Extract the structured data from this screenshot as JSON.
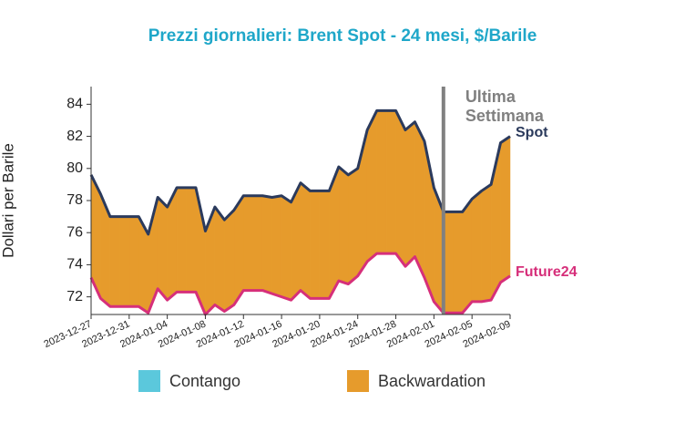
{
  "chart_data": {
    "type": "area-between",
    "title": "Prezzi giornalieri: Brent Spot - 24 mesi, $/Barile",
    "y_label": "Dollari per Barile",
    "x": [
      "2023-12-27",
      "2023-12-28",
      "2023-12-29",
      "2023-12-30",
      "2023-12-31",
      "2024-01-01",
      "2024-01-02",
      "2024-01-03",
      "2024-01-04",
      "2024-01-05",
      "2024-01-06",
      "2024-01-07",
      "2024-01-08",
      "2024-01-09",
      "2024-01-10",
      "2024-01-11",
      "2024-01-12",
      "2024-01-13",
      "2024-01-14",
      "2024-01-15",
      "2024-01-16",
      "2024-01-17",
      "2024-01-18",
      "2024-01-19",
      "2024-01-20",
      "2024-01-21",
      "2024-01-22",
      "2024-01-23",
      "2024-01-24",
      "2024-01-25",
      "2024-01-26",
      "2024-01-27",
      "2024-01-28",
      "2024-01-29",
      "2024-01-30",
      "2024-01-31",
      "2024-02-01",
      "2024-02-02",
      "2024-02-03",
      "2024-02-04",
      "2024-02-05",
      "2024-02-06",
      "2024-02-07",
      "2024-02-08",
      "2024-02-09"
    ],
    "series": [
      {
        "name": "Spot",
        "color": "#2b3a5c",
        "values": [
          79.6,
          78.4,
          77.0,
          77.0,
          77.0,
          77.0,
          75.9,
          78.2,
          77.6,
          78.8,
          78.8,
          78.8,
          76.1,
          77.6,
          76.8,
          77.4,
          78.3,
          78.3,
          78.3,
          78.2,
          78.3,
          77.9,
          79.1,
          78.6,
          78.6,
          78.6,
          80.1,
          79.6,
          80.0,
          82.4,
          83.6,
          83.6,
          83.6,
          82.4,
          82.9,
          81.7,
          78.8,
          77.3,
          77.3,
          77.3,
          78.1,
          78.6,
          79.0,
          81.6,
          82.0
        ]
      },
      {
        "name": "Future24",
        "color": "#d62f7a",
        "values": [
          73.2,
          71.9,
          71.4,
          71.4,
          71.4,
          71.4,
          71.0,
          72.5,
          71.8,
          72.3,
          72.3,
          72.3,
          70.9,
          71.5,
          71.1,
          71.5,
          72.4,
          72.4,
          72.4,
          72.2,
          72.0,
          71.8,
          72.4,
          71.9,
          71.9,
          71.9,
          73.0,
          72.8,
          73.3,
          74.2,
          74.7,
          74.7,
          74.7,
          73.9,
          74.5,
          73.2,
          71.7,
          71.0,
          71.0,
          71.0,
          71.7,
          71.7,
          71.8,
          72.9,
          73.3
        ]
      }
    ],
    "fill_legend": [
      {
        "name": "Contango",
        "color": "#5bc8dc"
      },
      {
        "name": "Backwardation",
        "color": "#e69b2c"
      }
    ],
    "annotation": {
      "x": "2024-02-02",
      "lines": [
        "Ultima",
        "Settimana"
      ],
      "color": "#808080"
    },
    "ylim": [
      70.9,
      85.1
    ],
    "yticks": [
      72,
      74,
      76,
      78,
      80,
      82,
      84
    ],
    "xticks": [
      "2023-12-27",
      "2023-12-31",
      "2024-01-04",
      "2024-01-08",
      "2024-01-12",
      "2024-01-16",
      "2024-01-20",
      "2024-01-24",
      "2024-01-28",
      "2024-02-01",
      "2024-02-05",
      "2024-02-09"
    ],
    "grid": false
  }
}
